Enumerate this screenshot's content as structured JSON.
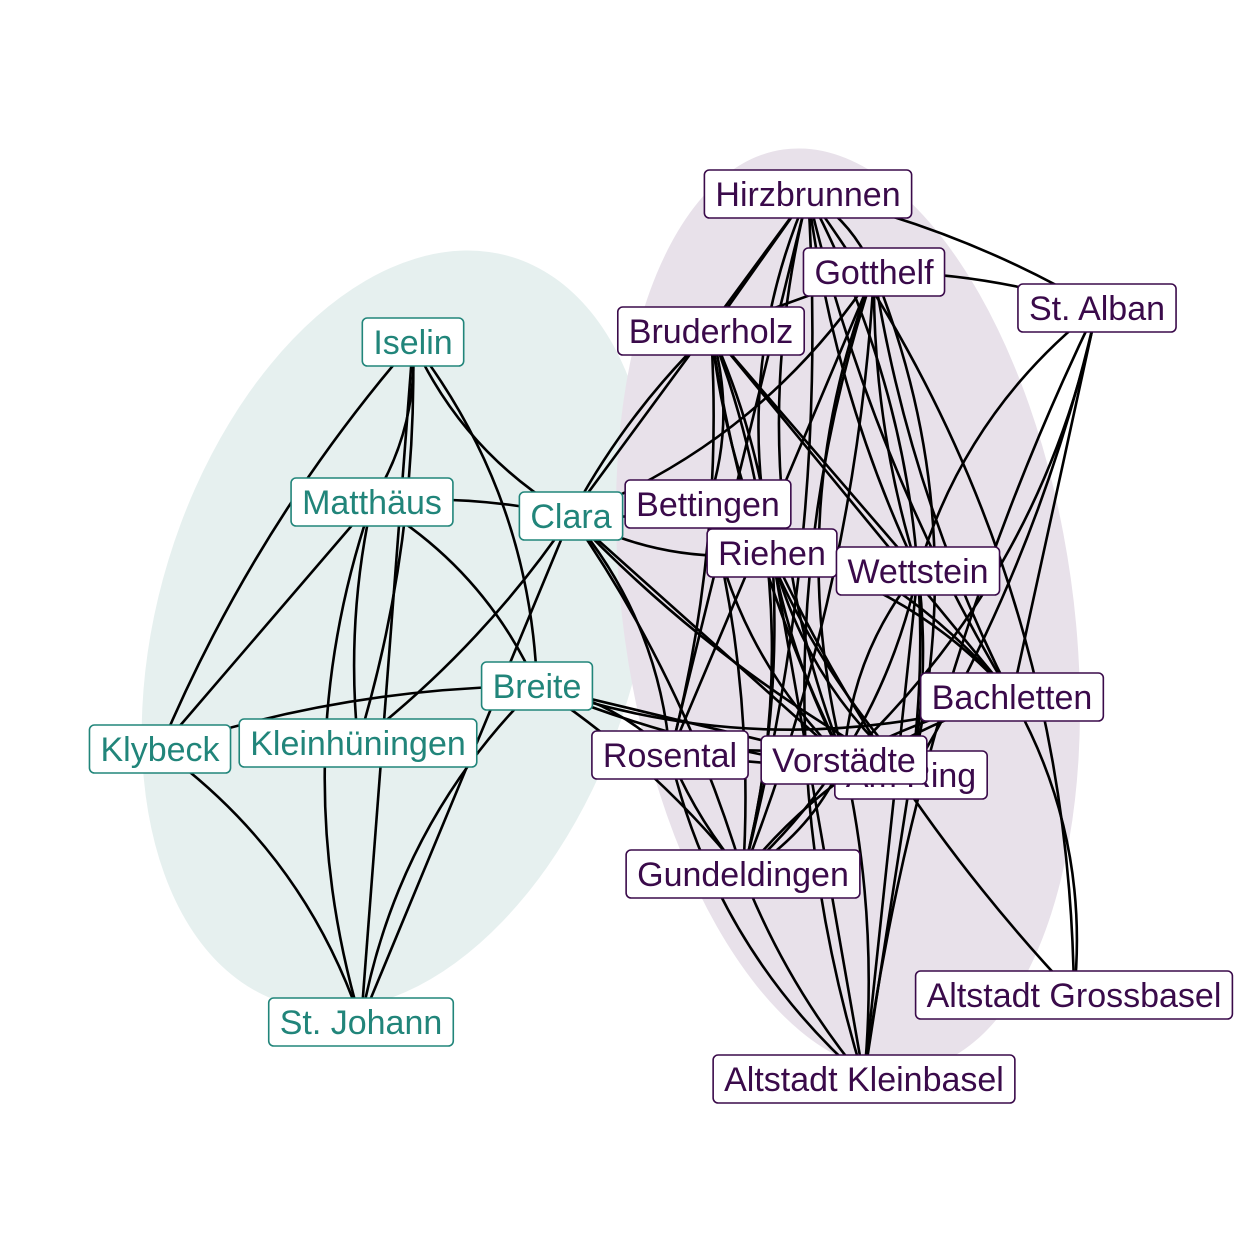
{
  "colors": {
    "background": "#ffffff",
    "edge": "#000000",
    "cluster_a_text": "#21857a",
    "cluster_a_fill": "#e6f0ef",
    "cluster_b_text": "#3a0a4a",
    "cluster_b_fill": "#e8e1ea"
  },
  "clusters": [
    {
      "id": "a",
      "color_key": "cluster_a"
    },
    {
      "id": "b",
      "color_key": "cluster_b"
    }
  ],
  "nodes": [
    {
      "id": "iselin",
      "label": "Iselin",
      "cluster": "a"
    },
    {
      "id": "matthaeus",
      "label": "Matthäus",
      "cluster": "a"
    },
    {
      "id": "clara",
      "label": "Clara",
      "cluster": "a"
    },
    {
      "id": "breite",
      "label": "Breite",
      "cluster": "a"
    },
    {
      "id": "kleinhueningen",
      "label": "Kleinhüningen",
      "cluster": "a"
    },
    {
      "id": "klybeck",
      "label": "Klybeck",
      "cluster": "a"
    },
    {
      "id": "stjohann",
      "label": "St. Johann",
      "cluster": "a"
    },
    {
      "id": "hirzbrunnen",
      "label": "Hirzbrunnen",
      "cluster": "b"
    },
    {
      "id": "gotthelf",
      "label": "Gotthelf",
      "cluster": "b"
    },
    {
      "id": "stalban",
      "label": "St. Alban",
      "cluster": "b"
    },
    {
      "id": "bruderholz",
      "label": "Bruderholz",
      "cluster": "b"
    },
    {
      "id": "bettingen",
      "label": "Bettingen",
      "cluster": "b"
    },
    {
      "id": "riehen",
      "label": "Riehen",
      "cluster": "b"
    },
    {
      "id": "wettstein",
      "label": "Wettstein",
      "cluster": "b"
    },
    {
      "id": "bachletten",
      "label": "Bachletten",
      "cluster": "b"
    },
    {
      "id": "amring",
      "label": "Am Ring",
      "cluster": "b"
    },
    {
      "id": "rosental",
      "label": "Rosental",
      "cluster": "b"
    },
    {
      "id": "vorstaedte",
      "label": "Vorstädte",
      "cluster": "b"
    },
    {
      "id": "gundeldingen",
      "label": "Gundeldingen",
      "cluster": "b"
    },
    {
      "id": "altstadtgrossbasel",
      "label": "Altstadt Grossbasel",
      "cluster": "b"
    },
    {
      "id": "altstadtkleinbasel",
      "label": "Altstadt Kleinbasel",
      "cluster": "b"
    }
  ],
  "edges": [
    [
      "iselin",
      "matthaeus"
    ],
    [
      "iselin",
      "kleinhueningen"
    ],
    [
      "iselin",
      "stjohann"
    ],
    [
      "iselin",
      "klybeck"
    ],
    [
      "iselin",
      "clara"
    ],
    [
      "iselin",
      "breite"
    ],
    [
      "matthaeus",
      "clara"
    ],
    [
      "matthaeus",
      "klybeck"
    ],
    [
      "matthaeus",
      "kleinhueningen"
    ],
    [
      "matthaeus",
      "stjohann"
    ],
    [
      "matthaeus",
      "breite"
    ],
    [
      "clara",
      "kleinhueningen"
    ],
    [
      "clara",
      "stjohann"
    ],
    [
      "breite",
      "klybeck"
    ],
    [
      "breite",
      "stjohann"
    ],
    [
      "klybeck",
      "stjohann"
    ],
    [
      "clara",
      "bruderholz"
    ],
    [
      "clara",
      "hirzbrunnen"
    ],
    [
      "clara",
      "bettingen"
    ],
    [
      "clara",
      "riehen"
    ],
    [
      "clara",
      "rosental"
    ],
    [
      "clara",
      "gundeldingen"
    ],
    [
      "clara",
      "vorstaedte"
    ],
    [
      "clara",
      "amring"
    ],
    [
      "clara",
      "gotthelf"
    ],
    [
      "breite",
      "rosental"
    ],
    [
      "breite",
      "gundeldingen"
    ],
    [
      "breite",
      "vorstaedte"
    ],
    [
      "breite",
      "amring"
    ],
    [
      "breite",
      "bachletten"
    ],
    [
      "hirzbrunnen",
      "gotthelf"
    ],
    [
      "hirzbrunnen",
      "stalban"
    ],
    [
      "hirzbrunnen",
      "bruderholz"
    ],
    [
      "hirzbrunnen",
      "wettstein"
    ],
    [
      "hirzbrunnen",
      "vorstaedte"
    ],
    [
      "hirzbrunnen",
      "amring"
    ],
    [
      "hirzbrunnen",
      "gundeldingen"
    ],
    [
      "hirzbrunnen",
      "rosental"
    ],
    [
      "hirzbrunnen",
      "bachletten"
    ],
    [
      "hirzbrunnen",
      "riehen"
    ],
    [
      "hirzbrunnen",
      "altstadtgrossbasel"
    ],
    [
      "gotthelf",
      "stalban"
    ],
    [
      "gotthelf",
      "bruderholz"
    ],
    [
      "gotthelf",
      "wettstein"
    ],
    [
      "gotthelf",
      "vorstaedte"
    ],
    [
      "gotthelf",
      "amring"
    ],
    [
      "gotthelf",
      "gundeldingen"
    ],
    [
      "gotthelf",
      "rosental"
    ],
    [
      "gotthelf",
      "bachletten"
    ],
    [
      "gotthelf",
      "altstadtkleinbasel"
    ],
    [
      "stalban",
      "vorstaedte"
    ],
    [
      "stalban",
      "amring"
    ],
    [
      "stalban",
      "bachletten"
    ],
    [
      "stalban",
      "altstadtkleinbasel"
    ],
    [
      "stalban",
      "wettstein"
    ],
    [
      "bruderholz",
      "bettingen"
    ],
    [
      "bruderholz",
      "riehen"
    ],
    [
      "bruderholz",
      "wettstein"
    ],
    [
      "bruderholz",
      "vorstaedte"
    ],
    [
      "bruderholz",
      "amring"
    ],
    [
      "bruderholz",
      "gundeldingen"
    ],
    [
      "bruderholz",
      "rosental"
    ],
    [
      "bruderholz",
      "bachletten"
    ],
    [
      "bettingen",
      "wettstein"
    ],
    [
      "bettingen",
      "vorstaedte"
    ],
    [
      "bettingen",
      "bachletten"
    ],
    [
      "bettingen",
      "gundeldingen"
    ],
    [
      "riehen",
      "wettstein"
    ],
    [
      "riehen",
      "vorstaedte"
    ],
    [
      "riehen",
      "amring"
    ],
    [
      "riehen",
      "bachletten"
    ],
    [
      "riehen",
      "gundeldingen"
    ],
    [
      "riehen",
      "altstadtkleinbasel"
    ],
    [
      "riehen",
      "altstadtgrossbasel"
    ],
    [
      "wettstein",
      "vorstaedte"
    ],
    [
      "wettstein",
      "gundeldingen"
    ],
    [
      "wettstein",
      "amring"
    ],
    [
      "wettstein",
      "altstadtkleinbasel"
    ],
    [
      "bachletten",
      "vorstaedte"
    ],
    [
      "bachletten",
      "gundeldingen"
    ],
    [
      "bachletten",
      "altstadtgrossbasel"
    ],
    [
      "rosental",
      "vorstaedte"
    ],
    [
      "rosental",
      "amring"
    ],
    [
      "rosental",
      "gundeldingen"
    ],
    [
      "rosental",
      "altstadtkleinbasel"
    ],
    [
      "vorstaedte",
      "gundeldingen"
    ],
    [
      "vorstaedte",
      "altstadtkleinbasel"
    ],
    [
      "amring",
      "altstadtkleinbasel"
    ],
    [
      "gundeldingen",
      "altstadtkleinbasel"
    ]
  ]
}
